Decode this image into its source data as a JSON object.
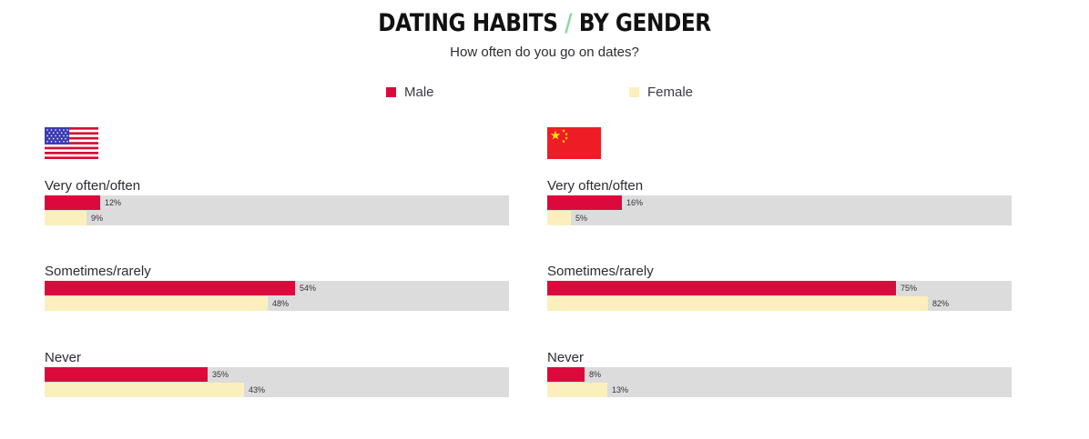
{
  "header": {
    "title_left": "DATING HABITS",
    "title_sep": "/",
    "title_right": "BY GENDER",
    "subtitle": "How often do you go on dates?"
  },
  "legend": [
    {
      "label": "Male",
      "color": "#dc0a3c"
    },
    {
      "label": "Female",
      "color": "#fbf0bd"
    }
  ],
  "flags": {
    "us": "us-flag-icon",
    "china": "china-flag-icon"
  },
  "chart_data": [
    {
      "type": "bar",
      "flag": "us-flag-icon",
      "categories": [
        "Very often/often",
        "Sometimes/rarely",
        "Never"
      ],
      "series": [
        {
          "name": "Male",
          "values": [
            12,
            54,
            35
          ],
          "labels": [
            "12%",
            "54%",
            "35%"
          ]
        },
        {
          "name": "Female",
          "values": [
            9,
            48,
            43
          ],
          "labels": [
            "9%",
            "48%",
            "43%"
          ]
        }
      ],
      "xlim": [
        0,
        100
      ]
    },
    {
      "type": "bar",
      "flag": "china-flag-icon",
      "categories": [
        "Very often/often",
        "Sometimes/rarely",
        "Never"
      ],
      "series": [
        {
          "name": "Male",
          "values": [
            16,
            75,
            8
          ],
          "labels": [
            "16%",
            "75%",
            "8%"
          ]
        },
        {
          "name": "Female",
          "values": [
            5,
            82,
            13
          ],
          "labels": [
            "5%",
            "82%",
            "13%"
          ]
        }
      ],
      "xlim": [
        0,
        100
      ]
    }
  ]
}
